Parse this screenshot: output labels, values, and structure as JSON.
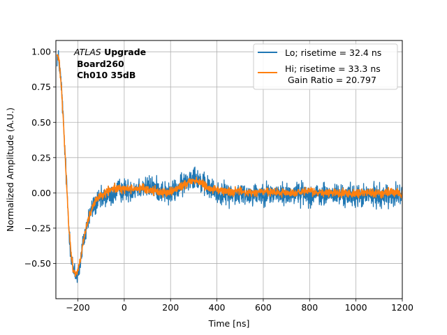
{
  "chart_data": {
    "type": "line",
    "title": "",
    "xlabel": "Time [ns]",
    "ylabel": "Normalized Amplitude (A.U.)",
    "xlim": [
      -295,
      1200
    ],
    "ylim": [
      -0.75,
      1.08
    ],
    "xticks": [
      -200,
      0,
      200,
      400,
      600,
      800,
      1000,
      1200
    ],
    "xtick_labels": [
      "−200",
      "0",
      "200",
      "400",
      "600",
      "800",
      "1000",
      "1200"
    ],
    "yticks": [
      -0.5,
      -0.25,
      0.0,
      0.25,
      0.5,
      0.75,
      1.0
    ],
    "ytick_labels": [
      "−0.50",
      "−0.25",
      "0.00",
      "0.25",
      "0.50",
      "0.75",
      "1.00"
    ],
    "grid": true,
    "legend_position": "top-right",
    "annotation": {
      "line1_italic": "ATLAS",
      "line1_bold": " Upgrade",
      "line2": "Board260",
      "line3": "Ch010 35dB"
    },
    "series": [
      {
        "name": "Lo; risetime = 32.4 ns",
        "color": "#1f77b4",
        "noise": 0.05,
        "x": [
          -290,
          -280,
          -270,
          -260,
          -250,
          -240,
          -230,
          -220,
          -210,
          -200,
          -190,
          -180,
          -170,
          -160,
          -150,
          -140,
          -130,
          -120,
          -110,
          -100,
          -80,
          -60,
          -40,
          -20,
          0,
          20,
          40,
          60,
          80,
          100,
          120,
          140,
          160,
          180,
          200,
          220,
          240,
          260,
          280,
          300,
          320,
          340,
          360,
          380,
          400,
          450,
          500,
          550,
          600,
          650,
          700,
          750,
          800,
          850,
          900,
          950,
          1000,
          1050,
          1100,
          1150,
          1200
        ],
        "y": [
          0.97,
          0.92,
          0.72,
          0.42,
          0.1,
          -0.22,
          -0.42,
          -0.55,
          -0.59,
          -0.57,
          -0.5,
          -0.38,
          -0.3,
          -0.22,
          -0.16,
          -0.12,
          -0.09,
          -0.07,
          -0.06,
          -0.05,
          -0.03,
          -0.02,
          0.0,
          0.02,
          0.02,
          0.02,
          0.03,
          0.04,
          0.04,
          0.04,
          0.04,
          0.03,
          0.02,
          0.0,
          -0.01,
          0.02,
          0.04,
          0.07,
          0.1,
          0.13,
          0.1,
          0.06,
          0.04,
          0.02,
          0.0,
          -0.01,
          -0.01,
          -0.01,
          0.0,
          -0.01,
          -0.01,
          0.0,
          -0.01,
          -0.02,
          -0.01,
          -0.02,
          -0.02,
          -0.02,
          -0.02,
          -0.02,
          -0.02
        ]
      },
      {
        "name": "Hi; risetime = 33.3 ns",
        "color": "#ff7f0e",
        "noise": 0.018,
        "x": [
          -290,
          -280,
          -270,
          -260,
          -250,
          -240,
          -230,
          -220,
          -210,
          -200,
          -190,
          -180,
          -170,
          -160,
          -150,
          -140,
          -130,
          -120,
          -110,
          -100,
          -80,
          -60,
          -40,
          -20,
          0,
          20,
          40,
          60,
          80,
          100,
          120,
          140,
          160,
          180,
          200,
          220,
          240,
          260,
          280,
          300,
          320,
          340,
          360,
          380,
          400,
          450,
          500,
          550,
          600,
          650,
          700,
          750,
          800,
          850,
          900,
          950,
          1000,
          1050,
          1100,
          1150,
          1200
        ],
        "y": [
          0.98,
          0.93,
          0.73,
          0.43,
          0.1,
          -0.22,
          -0.42,
          -0.55,
          -0.57,
          -0.55,
          -0.48,
          -0.38,
          -0.3,
          -0.22,
          -0.16,
          -0.12,
          -0.08,
          -0.05,
          -0.03,
          -0.02,
          0.0,
          0.02,
          0.03,
          0.03,
          0.03,
          0.03,
          0.03,
          0.03,
          0.03,
          0.02,
          0.02,
          0.01,
          0.01,
          0.0,
          0.01,
          0.02,
          0.04,
          0.06,
          0.08,
          0.09,
          0.08,
          0.06,
          0.04,
          0.03,
          0.02,
          0.01,
          0.01,
          0.0,
          0.01,
          0.0,
          0.0,
          0.0,
          0.01,
          0.0,
          0.0,
          0.0,
          0.0,
          0.0,
          0.0,
          0.0,
          0.0
        ]
      }
    ],
    "legend_extra": " Gain Ratio = 20.797"
  }
}
